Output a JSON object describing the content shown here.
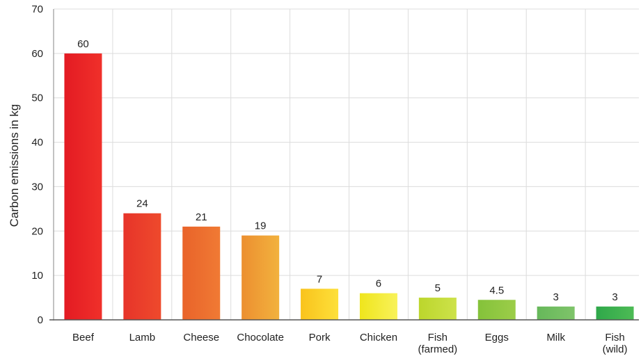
{
  "chart_data": {
    "type": "bar",
    "ylabel": "Carbon emissions in kg",
    "ylim": [
      0,
      70
    ],
    "yticks": [
      0,
      10,
      20,
      30,
      40,
      50,
      60,
      70
    ],
    "grid": true,
    "categories": [
      [
        "Beef"
      ],
      [
        "Lamb"
      ],
      [
        "Cheese"
      ],
      [
        "Chocolate"
      ],
      [
        "Pork"
      ],
      [
        "Chicken"
      ],
      [
        "Fish",
        "(farmed)"
      ],
      [
        "Eggs"
      ],
      [
        "Milk"
      ],
      [
        "Fish",
        "(wild)"
      ]
    ],
    "values": [
      60,
      24,
      21,
      19,
      7,
      6,
      5,
      4.5,
      3,
      3
    ],
    "value_labels": [
      "60",
      "24",
      "21",
      "19",
      "7",
      "6",
      "5",
      "4.5",
      "3",
      "3"
    ],
    "colors": [
      [
        "#f0302a",
        "#e31b23"
      ],
      [
        "#ee4a2c",
        "#e7342a"
      ],
      [
        "#f07a34",
        "#e9632a"
      ],
      [
        "#f2b23e",
        "#ec8f30"
      ],
      [
        "#fde03a",
        "#f9c31c"
      ],
      [
        "#f8f25a",
        "#efe51c"
      ],
      [
        "#cde24a",
        "#bcd62c"
      ],
      [
        "#9ccd49",
        "#84c23a"
      ],
      [
        "#7fc46a",
        "#66b85a"
      ],
      [
        "#4dbb55",
        "#2fa84a"
      ]
    ]
  }
}
